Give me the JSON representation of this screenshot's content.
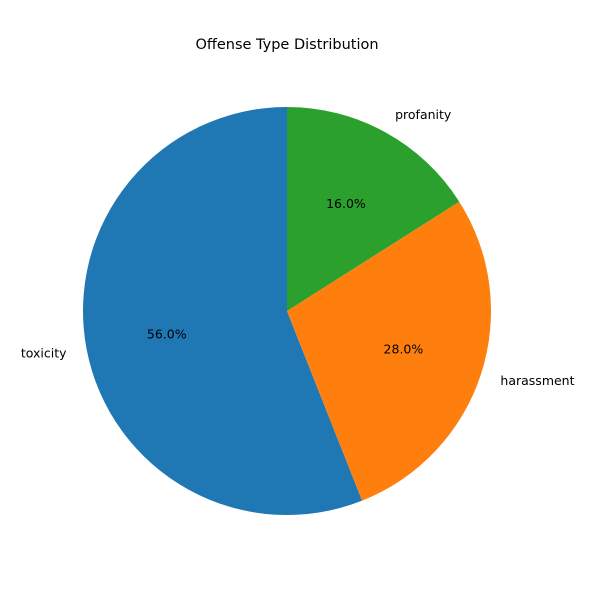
{
  "chart_data": {
    "type": "pie",
    "title": "Offense Type Distribution",
    "categories": [
      "toxicity",
      "harassment",
      "profanity"
    ],
    "values": [
      56.0,
      28.0,
      16.0
    ],
    "percent_labels": [
      "56.0%",
      "28.0%",
      "16.0%"
    ],
    "colors": [
      "#1f77b4",
      "#ff7f0e",
      "#2ca02c"
    ],
    "start_angle_deg": 90,
    "direction": "counterclockwise",
    "legend": "none"
  }
}
